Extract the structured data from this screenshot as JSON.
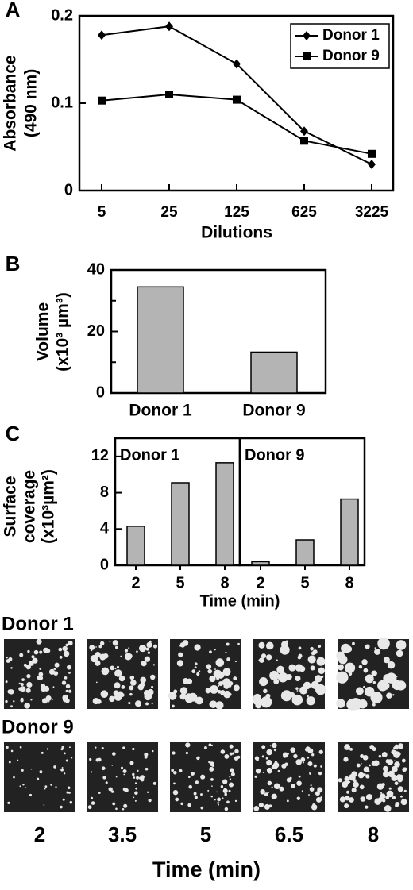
{
  "chart_data": [
    {
      "type": "line",
      "panel": "A",
      "categories": [
        "5",
        "25",
        "125",
        "625",
        "3225"
      ],
      "xlabel": "Dilutions",
      "ylabel": [
        "Absorbance",
        "(490 nm)"
      ],
      "ylim": [
        0,
        0.2
      ],
      "yticks": [
        0,
        0.1,
        0.2
      ],
      "legend": "upper right",
      "series": [
        {
          "name": "Donor 1",
          "color": "#000000",
          "marker": "diamond",
          "values": [
            0.178,
            0.188,
            0.145,
            0.068,
            0.03
          ]
        },
        {
          "name": "Donor 9",
          "color": "#000000",
          "marker": "square",
          "values": [
            0.103,
            0.11,
            0.104,
            0.057,
            0.042
          ]
        }
      ]
    },
    {
      "type": "bar",
      "panel": "B",
      "categories": [
        "Donor 1",
        "Donor 9"
      ],
      "values": [
        34.5,
        13.3
      ],
      "color": "#b4b4b4",
      "ylabel": [
        "Volume",
        "(x10³ µm³)"
      ],
      "ylim": [
        0,
        40
      ],
      "yticks": [
        0,
        20,
        40
      ],
      "yminorticks": [
        10,
        30
      ]
    },
    {
      "type": "facet-bar",
      "panel": "C",
      "categories": [
        "2",
        "5",
        "8"
      ],
      "color": "#b4b4b4",
      "xlabel": "Time (min)",
      "ylabel": [
        "Surface",
        "coverage",
        "(x10³µm²)"
      ],
      "ylim": [
        0,
        14
      ],
      "yticks": [
        0,
        4,
        8,
        12
      ],
      "facets": [
        {
          "title": "Donor 1",
          "values": [
            4.3,
            9.1,
            11.3
          ]
        },
        {
          "title": "Donor 9",
          "values": [
            0.4,
            2.8,
            7.3
          ]
        }
      ]
    }
  ],
  "images": {
    "rows": [
      "Donor 1",
      "Donor 9"
    ],
    "times": [
      "2",
      "3.5",
      "5",
      "6.5",
      "8"
    ],
    "xlabel": "Time (min)"
  }
}
